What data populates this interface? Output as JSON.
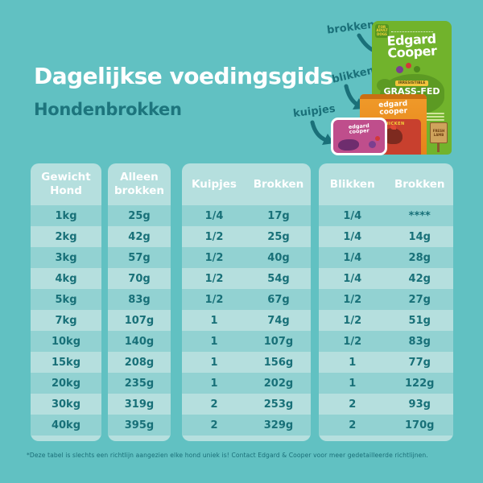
{
  "page": {
    "title": "Dagelijkse voedingsgids",
    "subtitle": "Hondenbrokken",
    "footnote": "*Deze tabel is slechts een richtlijn aangezien elke hond uniek is! Contact Edgard & Cooper voor meer gedetailleerde richtlijnen.",
    "colors": {
      "background": "#61c1c2",
      "panel_light": "#b5dfde",
      "row_stripe": "#92d2d2",
      "dark_teal_text": "#1a7079",
      "title_white": "#ffffff",
      "bag_green": "#71b32c",
      "can_orange": "#e9891c",
      "can_label_red": "#c8402e",
      "tub_pink": "#bf4e8c"
    }
  },
  "products": {
    "kibble_label": "brokken",
    "cans_label": "blikken",
    "tubs_label": "kuipjes",
    "bag": {
      "brand": "Edgard\nCooper",
      "tag": "FOR\nADULT\nDOGS",
      "ribbon": "IRRESISTIBLE",
      "variety": "GRASS-FED\nLAMB",
      "sign": "FRESH\nLAMB"
    },
    "can": {
      "brand": "edgard\ncooper",
      "variety": "CHICKEN"
    },
    "tub": {
      "brand": "edgard\ncooper"
    }
  },
  "table": {
    "weight_header": "Gewicht\nHond",
    "kibble_header": "Alleen\nbrokken",
    "tubs_headers": [
      "Kuipjes",
      "Brokken"
    ],
    "cans_headers": [
      "Blikken",
      "Brokken"
    ],
    "rows": [
      {
        "weight": "1kg",
        "kibble_only": "25g",
        "tubs": "1/4",
        "tubs_kibble": "17g",
        "cans": "1/4",
        "cans_kibble": "****"
      },
      {
        "weight": "2kg",
        "kibble_only": "42g",
        "tubs": "1/2",
        "tubs_kibble": "25g",
        "cans": "1/4",
        "cans_kibble": "14g"
      },
      {
        "weight": "3kg",
        "kibble_only": "57g",
        "tubs": "1/2",
        "tubs_kibble": "40g",
        "cans": "1/4",
        "cans_kibble": "28g"
      },
      {
        "weight": "4kg",
        "kibble_only": "70g",
        "tubs": "1/2",
        "tubs_kibble": "54g",
        "cans": "1/4",
        "cans_kibble": "42g"
      },
      {
        "weight": "5kg",
        "kibble_only": "83g",
        "tubs": "1/2",
        "tubs_kibble": "67g",
        "cans": "1/2",
        "cans_kibble": "27g"
      },
      {
        "weight": "7kg",
        "kibble_only": "107g",
        "tubs": "1",
        "tubs_kibble": "74g",
        "cans": "1/2",
        "cans_kibble": "51g"
      },
      {
        "weight": "10kg",
        "kibble_only": "140g",
        "tubs": "1",
        "tubs_kibble": "107g",
        "cans": "1/2",
        "cans_kibble": "83g"
      },
      {
        "weight": "15kg",
        "kibble_only": "208g",
        "tubs": "1",
        "tubs_kibble": "156g",
        "cans": "1",
        "cans_kibble": "77g"
      },
      {
        "weight": "20kg",
        "kibble_only": "235g",
        "tubs": "1",
        "tubs_kibble": "202g",
        "cans": "1",
        "cans_kibble": "122g"
      },
      {
        "weight": "30kg",
        "kibble_only": "319g",
        "tubs": "2",
        "tubs_kibble": "253g",
        "cans": "2",
        "cans_kibble": "93g"
      },
      {
        "weight": "40kg",
        "kibble_only": "395g",
        "tubs": "2",
        "tubs_kibble": "329g",
        "cans": "2",
        "cans_kibble": "170g"
      }
    ]
  }
}
